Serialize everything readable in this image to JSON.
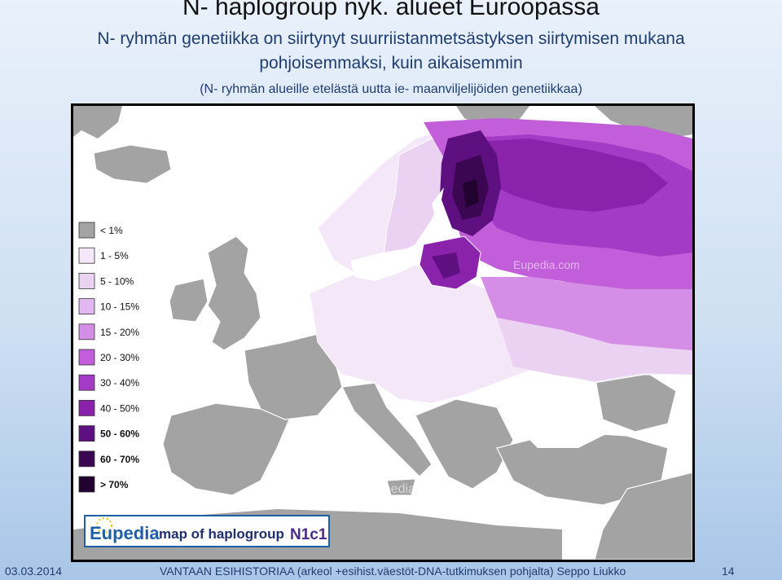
{
  "slide": {
    "title": "N- haplogroup nyk. alueet Euroopassa",
    "subtitle_line1": "N- ryhmän genetiikka on siirtynyt suurriistanmetsästyksen siirtymisen mukana",
    "subtitle_line2": "pohjoisemmaksi, kuin aikaisemmin",
    "note": "(N- ryhmän alueille etelästä uutta ie- maanviljelijöiden genetiikkaa)"
  },
  "map": {
    "watermark_top": "Eupedia.com",
    "watermark_bottom": "© Eupedia.com",
    "brand": {
      "name": "Eupedia",
      "text": "map of haplogroup",
      "haplogroup": "N1c1"
    },
    "colors": {
      "sea": "#ffffff",
      "land_gray": "#9e9e9e",
      "border": "#ffffff"
    }
  },
  "legend": [
    {
      "label": "< 1%",
      "color": "#a3a3a3"
    },
    {
      "label": "1 - 5%",
      "color": "#f4e8f8"
    },
    {
      "label": "5 - 10%",
      "color": "#ebd2f3"
    },
    {
      "label": "10 - 15%",
      "color": "#e1b8ef"
    },
    {
      "label": "15 - 20%",
      "color": "#d48ee6"
    },
    {
      "label": "20 - 30%",
      "color": "#c25ed9"
    },
    {
      "label": "30 - 40%",
      "color": "#a43bc6"
    },
    {
      "label": "40 - 50%",
      "color": "#8a22ab"
    },
    {
      "label": "50 - 60%",
      "color": "#5e0f80"
    },
    {
      "label": "60 - 70%",
      "color": "#3c0752"
    },
    {
      "label": "> 70%",
      "color": "#22032f"
    }
  ],
  "footer": {
    "date": "03.03.2014",
    "text": "VANTAAN ESIHISTORIAA (arkeol +esihist.väestöt-DNA-tutkimuksen pohjalta) Seppo Liukko",
    "page": "14"
  }
}
